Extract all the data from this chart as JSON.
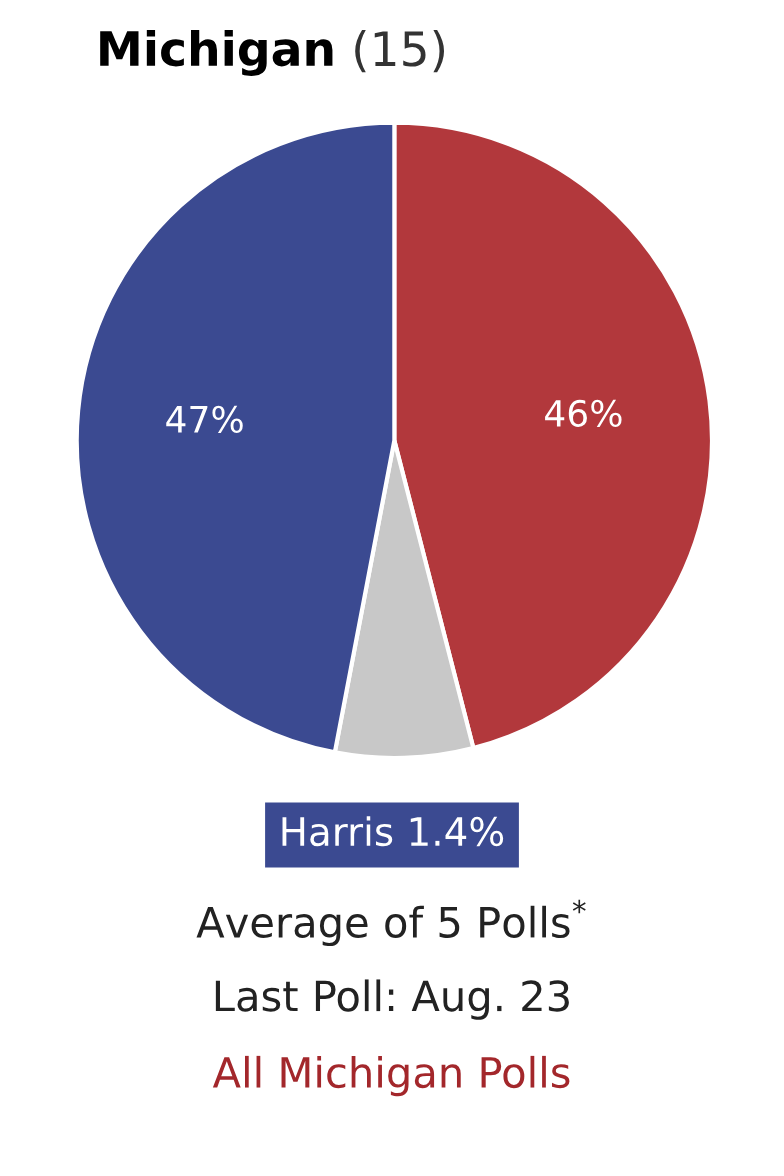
{
  "chart_data": {
    "type": "pie",
    "title": "Michigan",
    "subtitle": "(15)",
    "categories": [
      null,
      null,
      null
    ],
    "values": [
      46,
      7,
      47
    ],
    "colors": [
      "#b2383c",
      "#c8c8c8",
      "#3b4a91"
    ],
    "value_labels": [
      "46%",
      null,
      "47%"
    ],
    "annotations": [
      "Harris 1.4%",
      "Average of 5 Polls$^{*}$",
      "Last Poll: Aug. 23",
      "All Michigan Polls"
    ]
  }
}
